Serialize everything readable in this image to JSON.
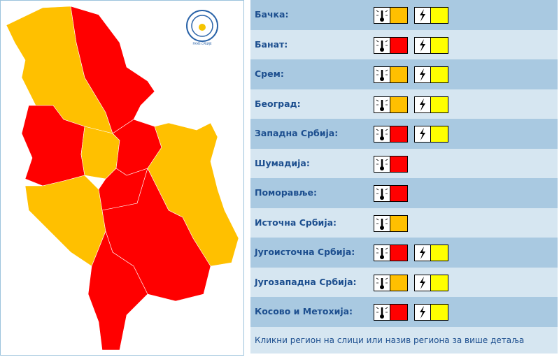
{
  "logo_text": "РХМЗ СРБИЈЕ",
  "regions": [
    {
      "name": "Бачка:",
      "heat": "#ffc000",
      "storm": "#ffff00"
    },
    {
      "name": "Банат:",
      "heat": "#ff0000",
      "storm": "#ffff00"
    },
    {
      "name": "Срем:",
      "heat": "#ffc000",
      "storm": "#ffff00"
    },
    {
      "name": "Београд:",
      "heat": "#ffc000",
      "storm": "#ffff00"
    },
    {
      "name": "Западна Србија:",
      "heat": "#ff0000",
      "storm": "#ffff00"
    },
    {
      "name": "Шумадија:",
      "heat": "#ff0000"
    },
    {
      "name": "Поморавље:",
      "heat": "#ff0000"
    },
    {
      "name": "Источна Србија:",
      "heat": "#ffc000"
    },
    {
      "name": "Југоисточна Србија:",
      "heat": "#ff0000",
      "storm": "#ffff00"
    },
    {
      "name": "Југозападна Србија:",
      "heat": "#ffc000",
      "storm": "#ffff00"
    },
    {
      "name": "Косово и Метохија:",
      "heat": "#ff0000",
      "storm": "#ffff00"
    }
  ],
  "footer": "Кликни регион на слици или назив региона за више детаља"
}
